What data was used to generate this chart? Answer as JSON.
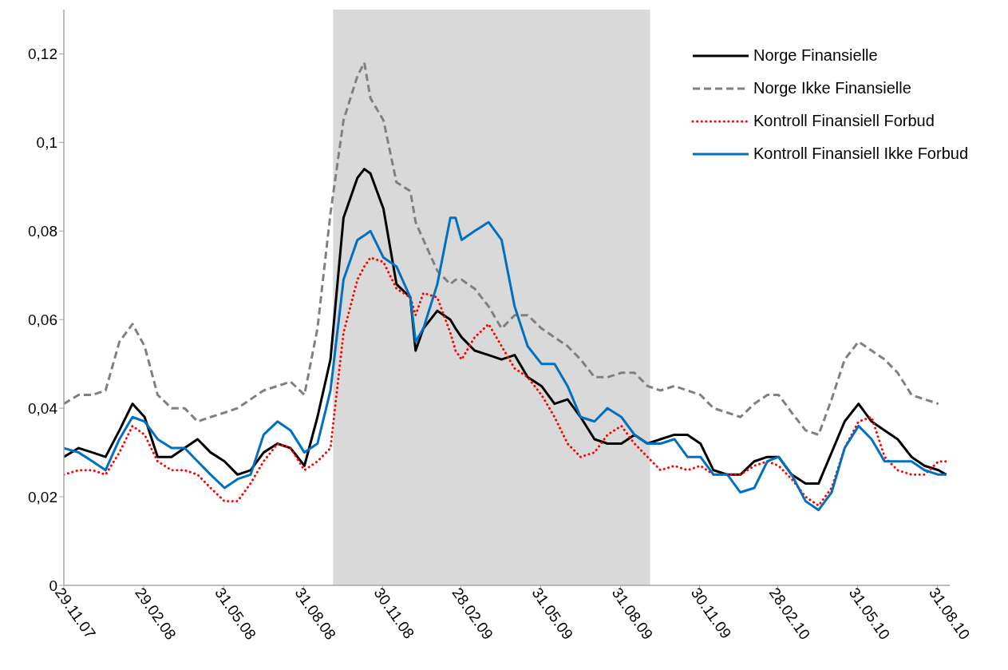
{
  "chart_data": {
    "type": "line",
    "x": [
      "2007-11-29",
      "2007-12-16",
      "2008-01-01",
      "2008-01-16",
      "2008-02-01",
      "2008-02-16",
      "2008-03-01",
      "2008-03-16",
      "2008-04-01",
      "2008-04-16",
      "2008-05-01",
      "2008-05-16",
      "2008-06-01",
      "2008-06-16",
      "2008-07-01",
      "2008-07-16",
      "2008-08-01",
      "2008-08-16",
      "2008-09-01",
      "2008-09-16",
      "2008-10-01",
      "2008-10-16",
      "2008-11-01",
      "2008-11-09",
      "2008-11-16",
      "2008-12-01",
      "2008-12-16",
      "2009-01-01",
      "2009-01-07",
      "2009-01-16",
      "2009-02-01",
      "2009-02-16",
      "2009-02-22",
      "2009-03-01",
      "2009-03-16",
      "2009-04-01",
      "2009-04-16",
      "2009-05-01",
      "2009-05-16",
      "2009-06-01",
      "2009-06-16",
      "2009-07-01",
      "2009-07-16",
      "2009-08-01",
      "2009-08-16",
      "2009-09-01",
      "2009-09-16",
      "2009-10-01",
      "2009-10-16",
      "2009-11-01",
      "2009-11-16",
      "2009-12-01",
      "2009-12-16",
      "2010-01-01",
      "2010-01-16",
      "2010-02-01",
      "2010-02-16",
      "2010-03-01",
      "2010-03-16",
      "2010-04-01",
      "2010-04-16",
      "2010-05-01",
      "2010-05-16",
      "2010-06-01",
      "2010-06-16",
      "2010-07-01",
      "2010-07-16",
      "2010-08-01",
      "2010-08-16",
      "2010-09-01",
      "2010-09-10"
    ],
    "series": [
      {
        "name": "Norge Finansielle",
        "color": "#000000",
        "line_style": "solid",
        "values": [
          0.029,
          0.031,
          0.03,
          0.029,
          0.035,
          0.041,
          0.038,
          0.029,
          0.029,
          0.031,
          0.033,
          0.03,
          0.028,
          0.025,
          0.026,
          0.03,
          0.032,
          0.031,
          0.027,
          0.038,
          0.051,
          0.083,
          0.092,
          0.094,
          0.093,
          0.085,
          0.068,
          0.065,
          0.053,
          0.058,
          0.062,
          0.06,
          0.058,
          0.056,
          0.053,
          0.052,
          0.051,
          0.052,
          0.047,
          0.045,
          0.041,
          0.042,
          0.038,
          0.033,
          0.032,
          0.032,
          0.034,
          0.032,
          0.033,
          0.034,
          0.034,
          0.032,
          0.026,
          0.025,
          0.025,
          0.028,
          0.029,
          0.029,
          0.025,
          0.023,
          0.023,
          0.03,
          0.037,
          0.041,
          0.037,
          0.035,
          0.033,
          0.029,
          0.027,
          0.026,
          0.025
        ]
      },
      {
        "name": "Norge Ikke Finansielle",
        "color": "#808080",
        "line_style": "dashed",
        "values": [
          0.041,
          0.043,
          0.043,
          0.044,
          0.055,
          0.059,
          0.054,
          0.043,
          0.04,
          0.04,
          0.037,
          0.038,
          0.039,
          0.04,
          0.042,
          0.044,
          0.045,
          0.046,
          0.043,
          0.058,
          0.084,
          0.105,
          0.115,
          0.118,
          0.11,
          0.105,
          0.091,
          0.089,
          0.082,
          0.078,
          0.071,
          0.068,
          0.069,
          0.069,
          0.067,
          0.063,
          0.058,
          0.061,
          0.061,
          0.058,
          0.056,
          0.054,
          0.051,
          0.047,
          0.047,
          0.048,
          0.048,
          0.045,
          0.044,
          0.045,
          0.044,
          0.043,
          0.04,
          0.039,
          0.038,
          0.041,
          0.043,
          0.043,
          0.039,
          0.035,
          0.034,
          0.042,
          0.051,
          0.055,
          0.053,
          0.051,
          0.048,
          0.043,
          0.042,
          0.041,
          null
        ]
      },
      {
        "name": "Kontroll Finansiell Forbud",
        "color": "#ff0000",
        "line_style": "dotted",
        "values": [
          0.025,
          0.026,
          0.026,
          0.025,
          0.03,
          0.036,
          0.034,
          0.028,
          0.026,
          0.026,
          0.025,
          0.022,
          0.019,
          0.019,
          0.023,
          0.028,
          0.032,
          0.031,
          0.026,
          0.028,
          0.031,
          0.057,
          0.069,
          0.072,
          0.074,
          0.073,
          0.067,
          0.065,
          0.061,
          0.066,
          0.065,
          0.057,
          0.053,
          0.051,
          0.056,
          0.059,
          0.054,
          0.049,
          0.047,
          0.043,
          0.038,
          0.032,
          0.029,
          0.03,
          0.034,
          0.036,
          0.032,
          0.029,
          0.026,
          0.027,
          0.026,
          0.027,
          0.025,
          0.025,
          0.025,
          0.027,
          0.028,
          0.027,
          0.024,
          0.02,
          0.018,
          0.022,
          0.031,
          0.037,
          0.038,
          0.029,
          0.026,
          0.025,
          0.025,
          0.028,
          0.028
        ]
      },
      {
        "name": "Kontroll Finansiell Ikke Forbud",
        "color": "#0070c0",
        "line_style": "solid",
        "values": [
          0.031,
          0.03,
          0.028,
          0.026,
          0.033,
          0.038,
          0.037,
          0.033,
          0.031,
          0.031,
          0.028,
          0.025,
          0.022,
          0.024,
          0.025,
          0.034,
          0.037,
          0.035,
          0.03,
          0.032,
          0.044,
          0.069,
          0.078,
          0.079,
          0.08,
          0.074,
          0.072,
          0.065,
          0.055,
          0.058,
          0.068,
          0.083,
          0.083,
          0.078,
          0.08,
          0.082,
          0.078,
          0.063,
          0.054,
          0.05,
          0.05,
          0.045,
          0.038,
          0.037,
          0.04,
          0.038,
          0.034,
          0.032,
          0.032,
          0.033,
          0.029,
          0.029,
          0.025,
          0.025,
          0.021,
          0.022,
          0.028,
          0.029,
          0.025,
          0.019,
          0.017,
          0.021,
          0.031,
          0.036,
          0.033,
          0.028,
          0.028,
          0.028,
          0.026,
          0.025,
          0.025
        ]
      }
    ],
    "xlim": [
      "2007-11-29",
      "2010-09-14"
    ],
    "xticks": [
      {
        "value": "2007-11-29",
        "label": "29.11.07"
      },
      {
        "value": "2008-02-29",
        "label": "29.02.08"
      },
      {
        "value": "2008-05-31",
        "label": "31.05.08"
      },
      {
        "value": "2008-08-31",
        "label": "31.08.08"
      },
      {
        "value": "2008-11-30",
        "label": "30.11.08"
      },
      {
        "value": "2009-02-28",
        "label": "28.02.09"
      },
      {
        "value": "2009-05-31",
        "label": "31.05.09"
      },
      {
        "value": "2009-08-31",
        "label": "31.08.09"
      },
      {
        "value": "2009-11-30",
        "label": "30.11.09"
      },
      {
        "value": "2010-02-28",
        "label": "28.02.10"
      },
      {
        "value": "2010-05-31",
        "label": "31.05.10"
      },
      {
        "value": "2010-08-31",
        "label": "31.08.10"
      }
    ],
    "ylim": [
      0,
      0.13
    ],
    "yticks": [
      0,
      {
        "value": 0.02,
        "label": "0,02"
      },
      {
        "value": 0.04,
        "label": "0,04"
      },
      {
        "value": 0.06,
        "label": "0,06"
      },
      {
        "value": 0.08,
        "label": "0,08"
      },
      {
        "value": 0.1,
        "label": "0,1"
      },
      {
        "value": 0.12,
        "label": "0,12"
      }
    ],
    "bands": [
      {
        "axis": "x",
        "from": "2008-10-04",
        "to": "2009-10-04",
        "color": "#d9d9d9"
      }
    ],
    "marker": "none",
    "legend": "top right"
  }
}
